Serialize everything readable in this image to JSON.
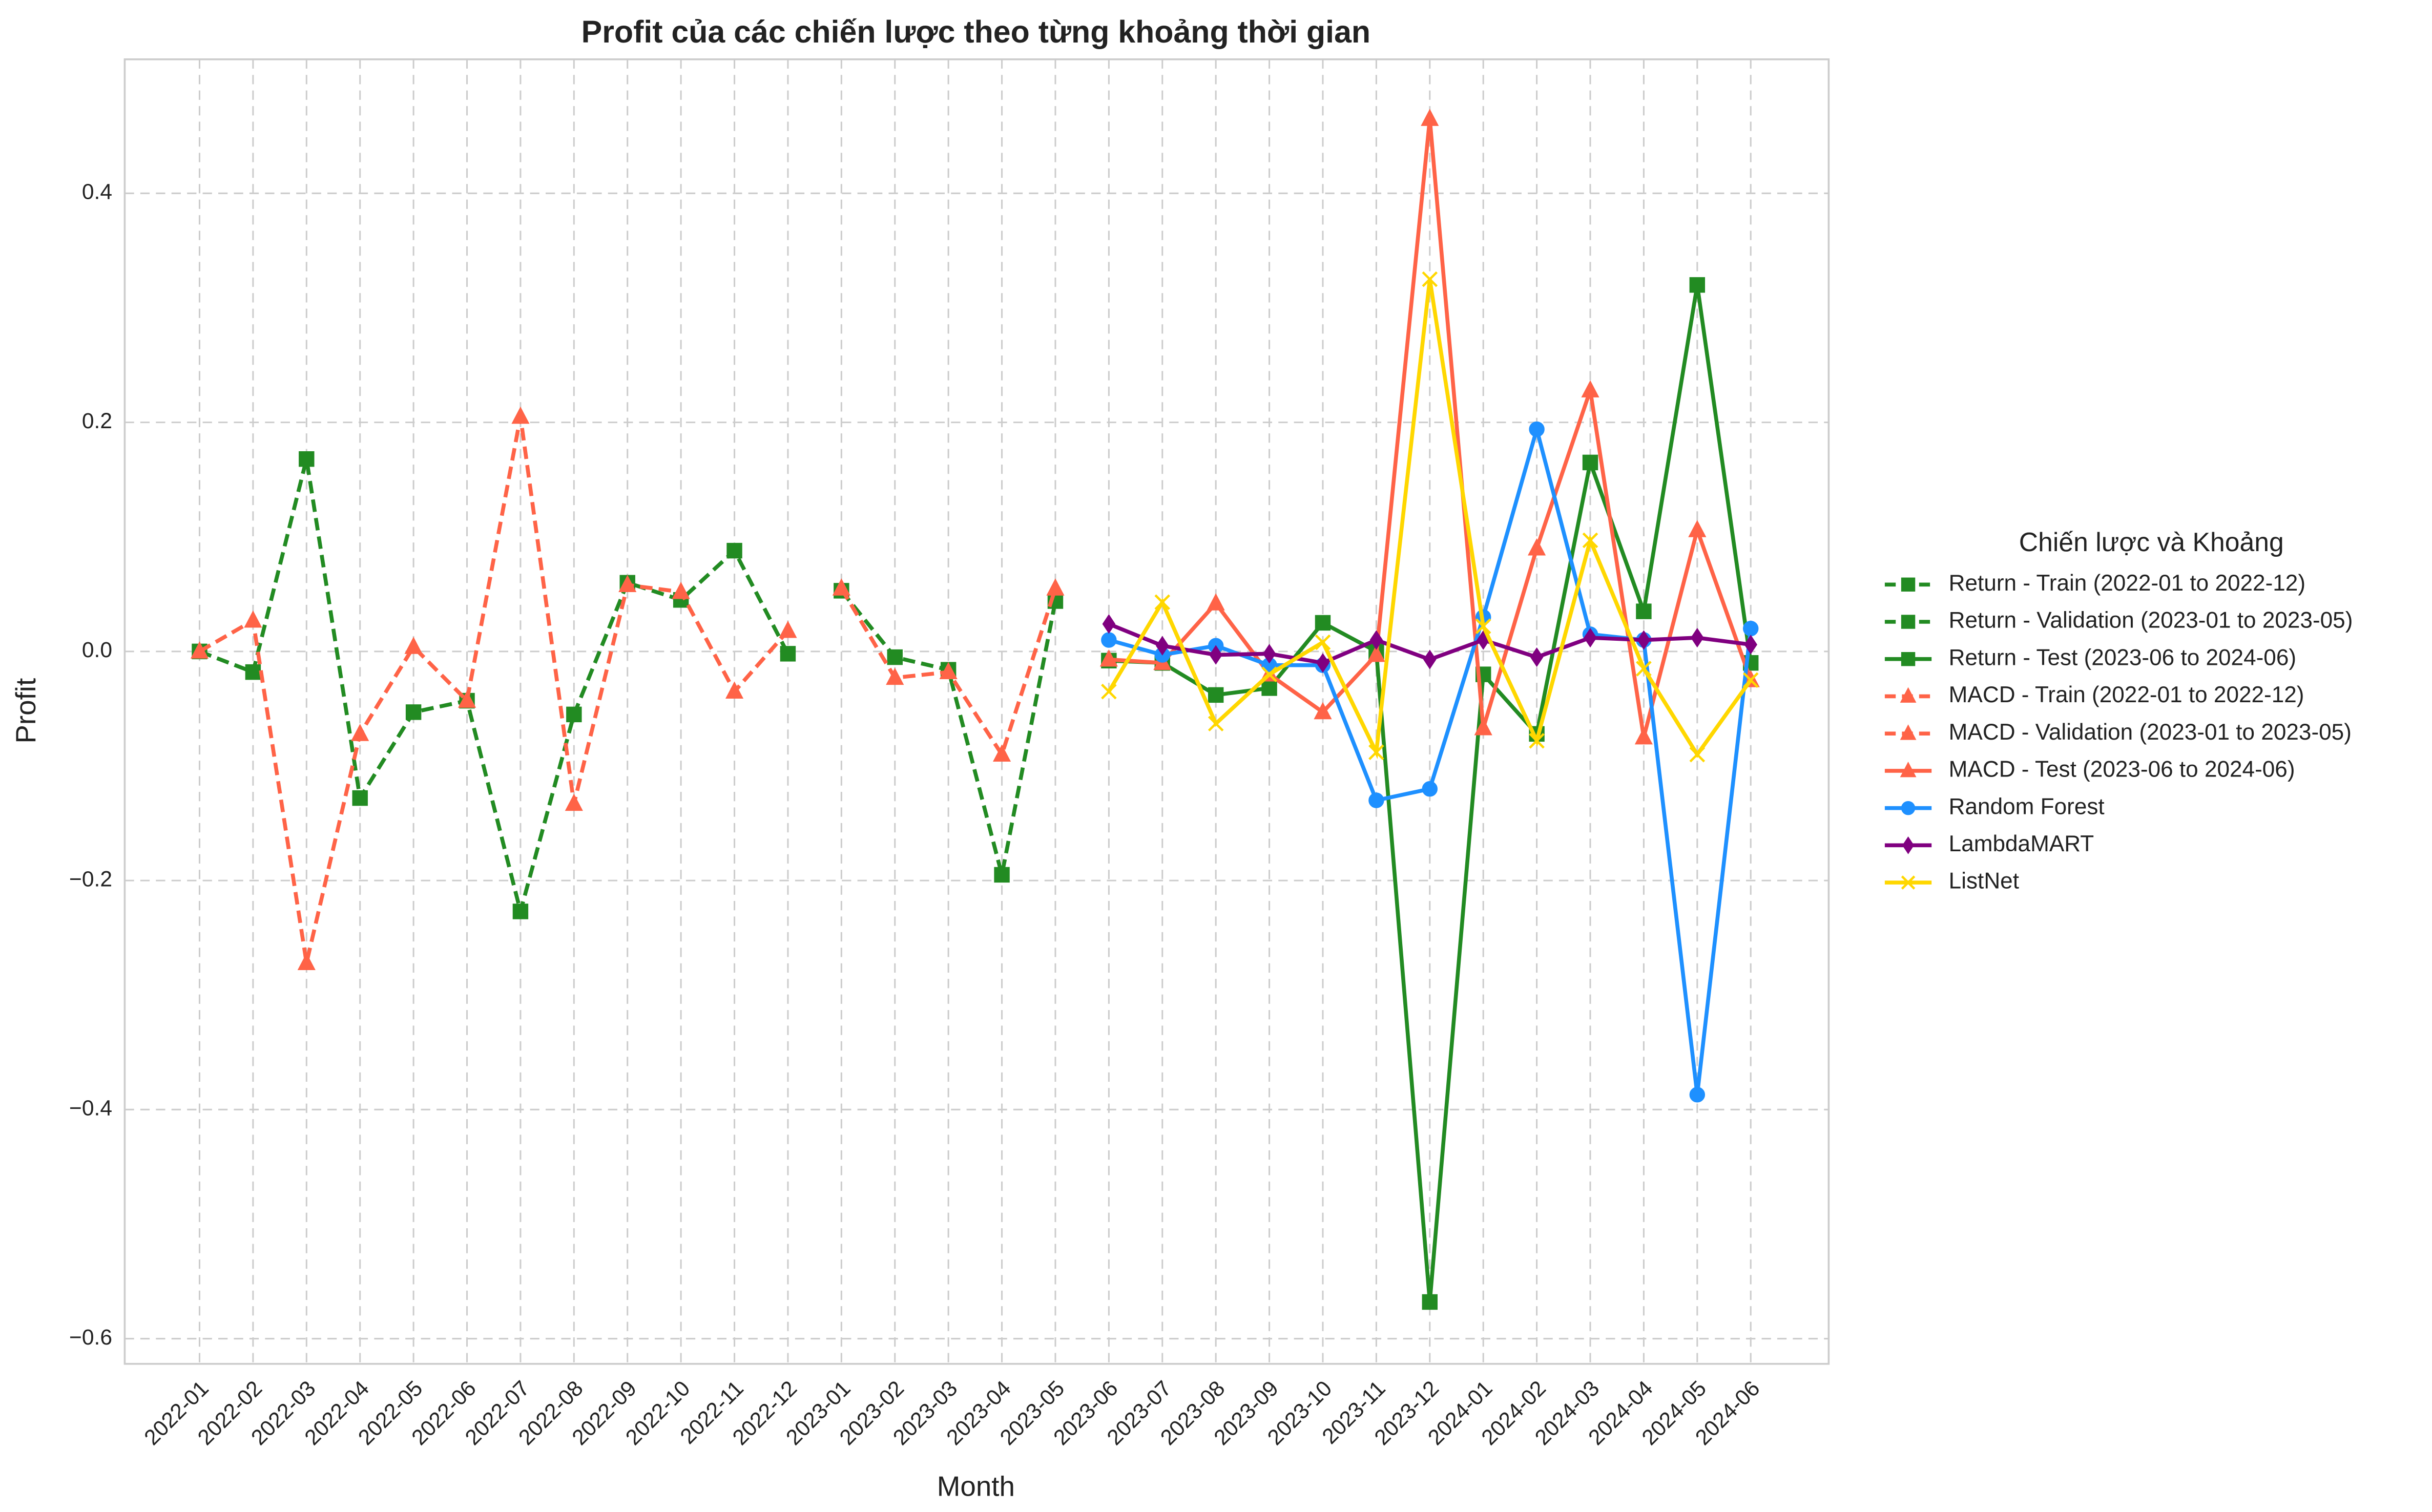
{
  "chart_data": {
    "type": "line",
    "title": "Profit của các chiến lược theo từng khoảng thời gian",
    "xlabel": "Month",
    "ylabel": "Profit",
    "legend_title": "Chiến lược và Khoảng",
    "legend": "outside right",
    "grid": true,
    "categories": [
      "2022-01",
      "2022-02",
      "2022-03",
      "2022-04",
      "2022-05",
      "2022-06",
      "2022-07",
      "2022-08",
      "2022-09",
      "2022-10",
      "2022-11",
      "2022-12",
      "2023-01",
      "2023-02",
      "2023-03",
      "2023-04",
      "2023-05",
      "2023-06",
      "2023-07",
      "2023-08",
      "2023-09",
      "2023-10",
      "2023-11",
      "2023-12",
      "2024-01",
      "2024-02",
      "2024-03",
      "2024-04",
      "2024-05",
      "2024-06"
    ],
    "ylim": [
      -0.622,
      0.517
    ],
    "yticks": [
      {
        "value": -0.6,
        "label": "−0.6"
      },
      {
        "value": -0.4,
        "label": "−0.4"
      },
      {
        "value": -0.2,
        "label": "−0.2"
      },
      {
        "value": 0,
        "label": "0.0"
      },
      0.2,
      0.4
    ],
    "series": [
      {
        "name": "Return - Train (2022-01 to 2022-12)",
        "color": "#228b22",
        "dash": true,
        "marker": "square",
        "values": [
          0.0,
          -0.018,
          0.168,
          -0.128,
          -0.053,
          -0.043,
          -0.227,
          -0.055,
          0.06,
          0.045,
          0.088,
          -0.002,
          null,
          null,
          null,
          null,
          null,
          null,
          null,
          null,
          null,
          null,
          null,
          null,
          null,
          null,
          null,
          null,
          null,
          null
        ]
      },
      {
        "name": "Return - Validation (2023-01 to 2023-05)",
        "color": "#228b22",
        "dash": true,
        "marker": "square",
        "values": [
          null,
          null,
          null,
          null,
          null,
          null,
          null,
          null,
          null,
          null,
          null,
          null,
          0.053,
          -0.005,
          -0.016,
          -0.195,
          0.044,
          null,
          null,
          null,
          null,
          null,
          null,
          null,
          null,
          null,
          null,
          null,
          null,
          null
        ]
      },
      {
        "name": "Return - Test (2023-06 to 2024-06)",
        "color": "#228b22",
        "dash": false,
        "marker": "square",
        "values": [
          null,
          null,
          null,
          null,
          null,
          null,
          null,
          null,
          null,
          null,
          null,
          null,
          null,
          null,
          null,
          null,
          null,
          -0.008,
          -0.01,
          -0.038,
          -0.032,
          0.025,
          0.0,
          -0.568,
          -0.02,
          -0.072,
          0.165,
          0.035,
          0.32,
          -0.01
        ]
      },
      {
        "name": "MACD - Train (2022-01 to 2022-12)",
        "color": "#ff6347",
        "dash": true,
        "marker": "triangle",
        "values": [
          0.0,
          0.027,
          -0.272,
          -0.072,
          0.004,
          -0.043,
          0.205,
          -0.133,
          0.058,
          0.052,
          -0.035,
          0.018,
          null,
          null,
          null,
          null,
          null,
          null,
          null,
          null,
          null,
          null,
          null,
          null,
          null,
          null,
          null,
          null,
          null,
          null
        ]
      },
      {
        "name": "MACD - Validation (2023-01 to 2023-05)",
        "color": "#ff6347",
        "dash": true,
        "marker": "triangle",
        "values": [
          null,
          null,
          null,
          null,
          null,
          null,
          null,
          null,
          null,
          null,
          null,
          null,
          0.055,
          -0.023,
          -0.018,
          -0.09,
          0.055,
          null,
          null,
          null,
          null,
          null,
          null,
          null,
          null,
          null,
          null,
          null,
          null,
          null
        ]
      },
      {
        "name": "MACD - Test (2023-06 to 2024-06)",
        "color": "#ff6347",
        "dash": false,
        "marker": "triangle",
        "values": [
          null,
          null,
          null,
          null,
          null,
          null,
          null,
          null,
          null,
          null,
          null,
          null,
          null,
          null,
          null,
          null,
          null,
          -0.007,
          -0.01,
          0.042,
          -0.02,
          -0.053,
          -0.003,
          0.465,
          -0.067,
          0.09,
          0.228,
          -0.075,
          0.106,
          -0.025
        ]
      },
      {
        "name": "Random Forest",
        "color": "#1e90ff",
        "dash": false,
        "marker": "circle",
        "values": [
          null,
          null,
          null,
          null,
          null,
          null,
          null,
          null,
          null,
          null,
          null,
          null,
          null,
          null,
          null,
          null,
          null,
          0.01,
          -0.003,
          0.005,
          -0.012,
          -0.012,
          -0.13,
          -0.12,
          0.03,
          0.194,
          0.015,
          0.01,
          -0.387,
          0.02
        ]
      },
      {
        "name": "LambdaMART",
        "color": "#800080",
        "dash": false,
        "marker": "diamond",
        "values": [
          null,
          null,
          null,
          null,
          null,
          null,
          null,
          null,
          null,
          null,
          null,
          null,
          null,
          null,
          null,
          null,
          null,
          0.024,
          0.005,
          -0.003,
          -0.002,
          -0.01,
          0.01,
          -0.007,
          0.01,
          -0.005,
          0.012,
          0.01,
          0.012,
          0.006
        ]
      },
      {
        "name": "ListNet",
        "color": "#ffd700",
        "dash": false,
        "marker": "x",
        "values": [
          null,
          null,
          null,
          null,
          null,
          null,
          null,
          null,
          null,
          null,
          null,
          null,
          null,
          null,
          null,
          null,
          null,
          -0.035,
          0.043,
          -0.063,
          -0.02,
          0.008,
          -0.088,
          0.325,
          0.022,
          -0.078,
          0.097,
          -0.015,
          -0.09,
          -0.025
        ]
      }
    ]
  }
}
